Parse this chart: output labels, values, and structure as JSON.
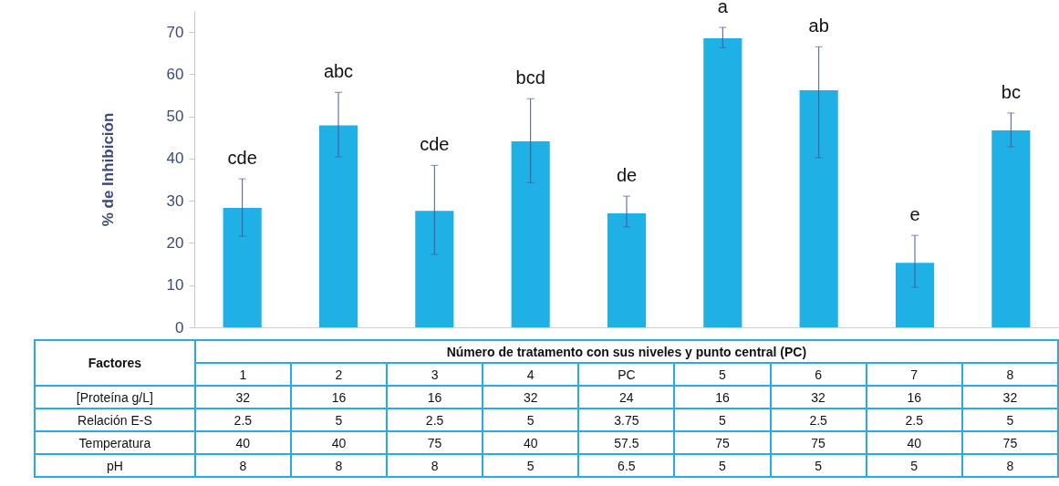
{
  "chart_data": {
    "type": "bar",
    "ylabel": "% de Inhibición",
    "xlabel": "Número de tratamento con sus niveles y punto central (PC)",
    "categories": [
      "1",
      "2",
      "3",
      "4",
      "PC",
      "5",
      "6",
      "7",
      "8"
    ],
    "values": [
      28.3,
      47.9,
      27.6,
      44.1,
      27.0,
      68.5,
      56.2,
      15.3,
      46.7
    ],
    "errors": [
      [
        21.6,
        35.2
      ],
      [
        40.4,
        55.7
      ],
      [
        17.3,
        38.4
      ],
      [
        34.3,
        54.2
      ],
      [
        23.8,
        31.1
      ],
      [
        66.3,
        71.1
      ],
      [
        40.2,
        66.5
      ],
      [
        9.5,
        21.8
      ],
      [
        42.8,
        50.8
      ]
    ],
    "color": "#1fb0e6",
    "ylim": [
      0,
      75
    ],
    "yticks": [
      0,
      10,
      20,
      30,
      40,
      50,
      60,
      70
    ],
    "grid": false,
    "tick_labels": "y",
    "annotations": [
      {
        "text": "cde",
        "x": "1",
        "y": 35.2
      },
      {
        "text": "abc",
        "x": "2",
        "y": 55.7
      },
      {
        "text": "cde",
        "x": "3",
        "y": 38.4
      },
      {
        "text": "bcd",
        "x": "4",
        "y": 54.2
      },
      {
        "text": "de",
        "x": "PC",
        "y": 31.1
      },
      {
        "text": "a",
        "x": "5",
        "y": 71.1
      },
      {
        "text": "ab",
        "x": "6",
        "y": 66.5
      },
      {
        "text": "e",
        "x": "7",
        "y": 21.8
      },
      {
        "text": "bc",
        "x": "8",
        "y": 50.8
      },
      "Factores",
      "[Proteína g/L]",
      "32",
      "16",
      "16",
      "32",
      "24",
      "16",
      "32",
      "16",
      "32",
      "Relación E-S",
      "2.5",
      "5",
      "2.5",
      "5",
      "3.75",
      "5",
      "2.5",
      "2.5",
      "5",
      "Temperatura",
      "40",
      "40",
      "75",
      "40",
      "57.5",
      "75",
      "75",
      "40",
      "75",
      "pH",
      "8",
      "8",
      "8",
      "5",
      "6.5",
      "5",
      "5",
      "5",
      "8"
    ]
  }
}
